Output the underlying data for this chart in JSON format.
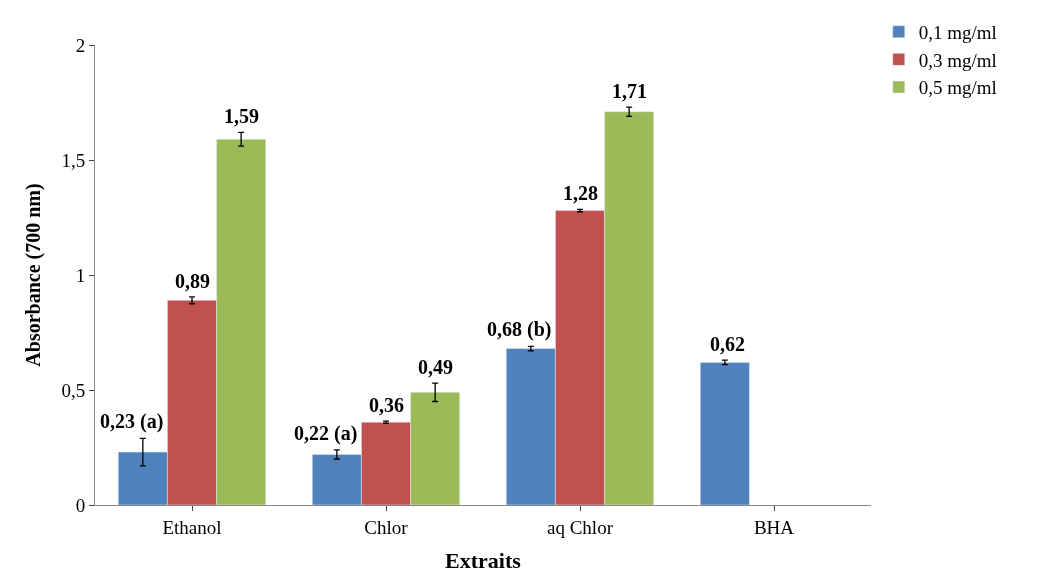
{
  "chart_data": {
    "type": "bar",
    "xlabel": "Extraits",
    "ylabel": "Absorbance (700 nm)",
    "categories": [
      "Ethanol",
      "Chlor",
      "aq Chlor",
      "BHA"
    ],
    "series": [
      {
        "name": "0,1 mg/ml",
        "color": "#4f81bd",
        "values": [
          0.23,
          0.22,
          0.68,
          0.62
        ],
        "errors": [
          0.06,
          0.02,
          0.01,
          0.01
        ],
        "value_labels": [
          "0,23 (a)",
          "0,22 (a)",
          "0,68 (b)",
          "0,62"
        ]
      },
      {
        "name": "0,3 mg/ml",
        "color": "#c0504d",
        "values": [
          0.89,
          0.36,
          1.28,
          null
        ],
        "errors": [
          0.015,
          0.005,
          0.005,
          null
        ],
        "value_labels": [
          "0,89",
          "0,36",
          "1,28",
          null
        ]
      },
      {
        "name": "0,5 mg/ml",
        "color": "#9bbb59",
        "values": [
          1.59,
          0.49,
          1.71,
          null
        ],
        "errors": [
          0.03,
          0.04,
          0.02,
          null
        ],
        "value_labels": [
          "1,59",
          "0,49",
          "1,71",
          null
        ]
      }
    ],
    "ylim": [
      0,
      2
    ],
    "yticks": [
      0,
      {
        "value": 0.5,
        "label": "0,5"
      },
      1,
      {
        "value": 1.5,
        "label": "1,5"
      },
      2
    ],
    "legend": "top right"
  }
}
